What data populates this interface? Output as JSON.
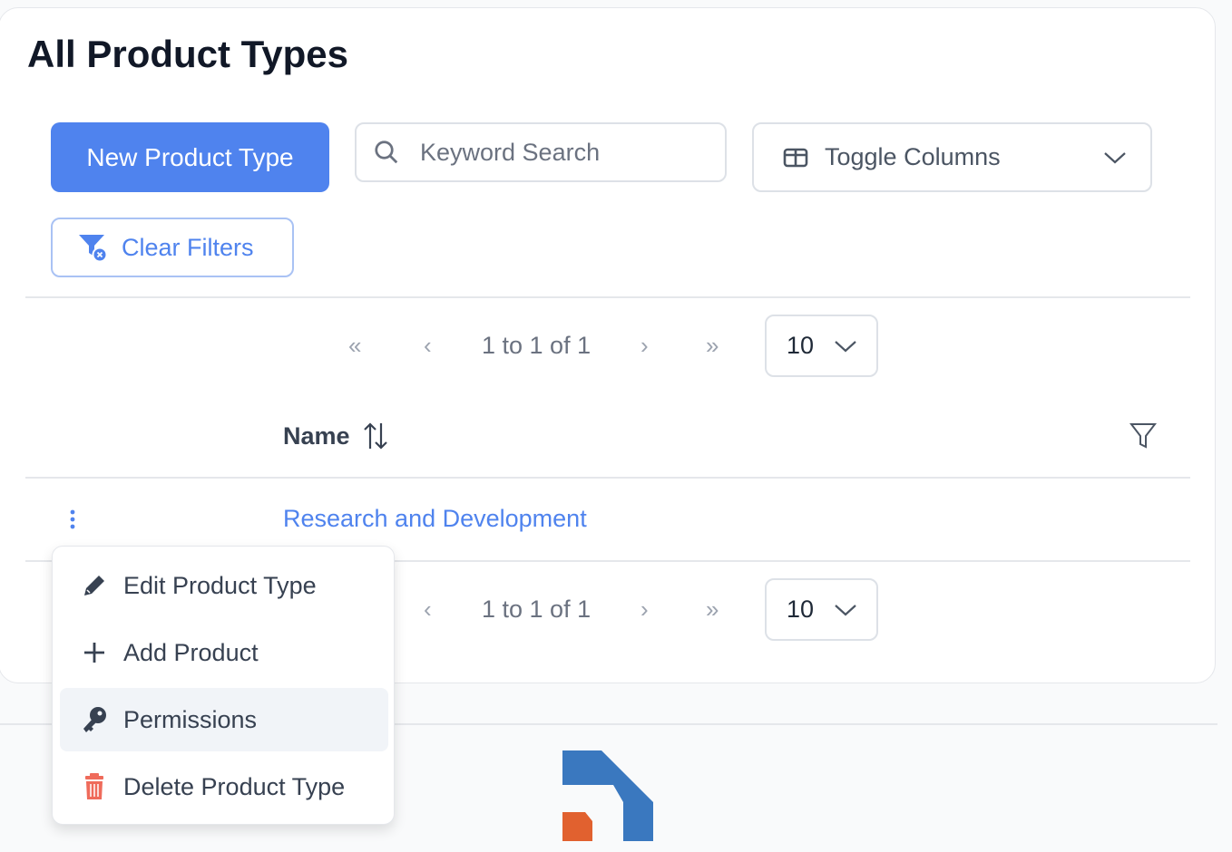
{
  "page": {
    "title": "All Product Types"
  },
  "toolbar": {
    "new_button": "New Product Type",
    "search_placeholder": "Keyword Search",
    "toggle_columns": "Toggle Columns",
    "clear_filters": "Clear Filters"
  },
  "pagination": {
    "summary": "1 to 1 of 1",
    "page_size": "10"
  },
  "table": {
    "columns": [
      "Name"
    ],
    "rows": [
      {
        "name": "Research and Development"
      }
    ]
  },
  "row_menu": {
    "items": [
      {
        "label": "Edit Product Type",
        "icon": "pencil-icon"
      },
      {
        "label": "Add Product",
        "icon": "plus-icon"
      },
      {
        "label": "Permissions",
        "icon": "key-icon",
        "highlighted": true
      },
      {
        "label": "Delete Product Type",
        "icon": "trash-icon"
      }
    ]
  },
  "colors": {
    "primary": "#4f83ee",
    "danger": "#ef6b5b",
    "logo_blue": "#3a78bf",
    "logo_orange": "#e1612f"
  }
}
